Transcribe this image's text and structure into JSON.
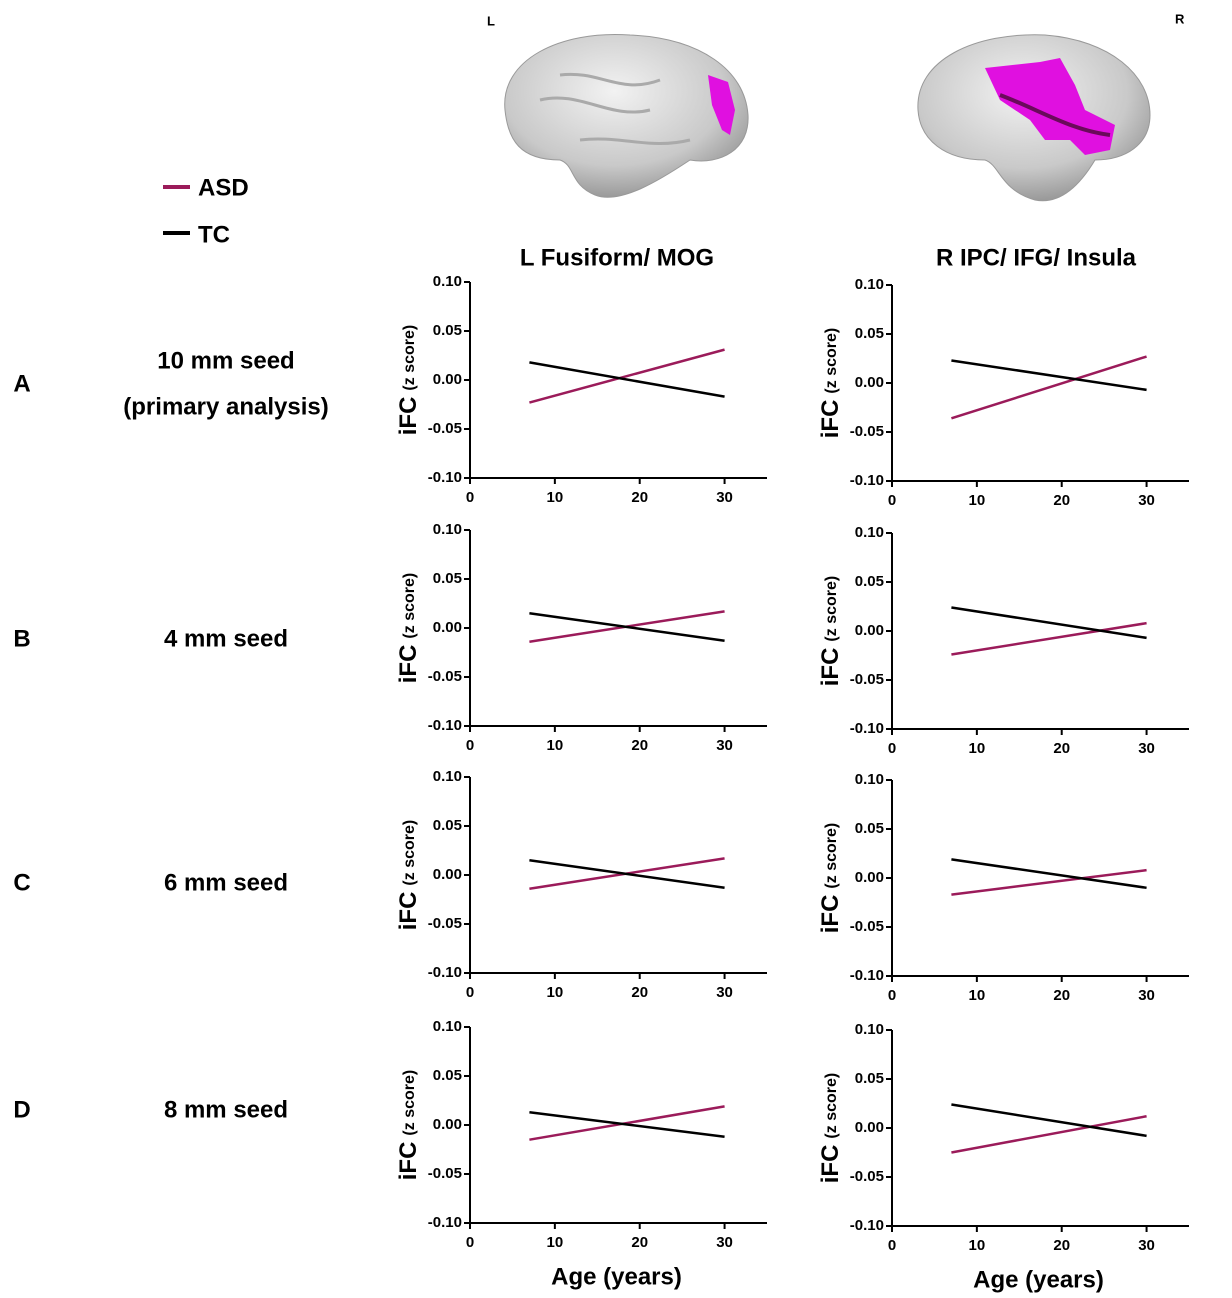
{
  "brain_labels": [
    "L",
    "R"
  ],
  "columns": [
    "L Fusiform/ MOG",
    "R IPC/ IFG/ Insula"
  ],
  "rows": [
    {
      "letter": "A",
      "label": [
        "10 mm seed",
        "(primary analysis)"
      ]
    },
    {
      "letter": "B",
      "label": [
        "4 mm seed"
      ]
    },
    {
      "letter": "C",
      "label": [
        "6 mm seed"
      ]
    },
    {
      "letter": "D",
      "label": [
        "8 mm seed"
      ]
    }
  ],
  "chart_data": [
    {
      "type": "line",
      "y_label": "iFC",
      "y_sublabel": "(z score)",
      "x": [
        7,
        30
      ],
      "series": [
        {
          "name": "ASD",
          "color": "#9b1b5a",
          "values": [
            -0.023,
            0.031
          ]
        },
        {
          "name": "TC",
          "color": "#000000",
          "values": [
            0.018,
            -0.017
          ]
        }
      ],
      "xlim": [
        0,
        35
      ],
      "xticks": [
        0,
        10,
        20,
        30
      ],
      "ylim": [
        -0.1,
        0.1
      ],
      "yticks": [
        {
          "value": -0.1,
          "label": "-0.10"
        },
        {
          "value": -0.05,
          "label": "-0.05"
        },
        {
          "value": 0,
          "label": "0.00"
        },
        {
          "value": 0.05,
          "label": "0.05"
        },
        {
          "value": 0.1,
          "label": "0.10"
        }
      ]
    },
    {
      "type": "line",
      "y_label": "iFC",
      "y_sublabel": "(z score)",
      "x": [
        7,
        30
      ],
      "series": [
        {
          "name": "ASD",
          "color": "#9b1b5a",
          "values": [
            -0.036,
            0.027
          ]
        },
        {
          "name": "TC",
          "color": "#000000",
          "values": [
            0.023,
            -0.007
          ]
        }
      ],
      "xlim": [
        0,
        35
      ],
      "xticks": [
        0,
        10,
        20,
        30
      ],
      "ylim": [
        -0.1,
        0.1
      ],
      "yticks": [
        {
          "value": -0.1,
          "label": "-0.10"
        },
        {
          "value": -0.05,
          "label": "-0.05"
        },
        {
          "value": 0,
          "label": "0.00"
        },
        {
          "value": 0.05,
          "label": "0.05"
        },
        {
          "value": 0.1,
          "label": "0.10"
        }
      ]
    },
    {
      "type": "line",
      "y_label": "iFC",
      "y_sublabel": "(z score)",
      "x": [
        7,
        30
      ],
      "series": [
        {
          "name": "ASD",
          "color": "#9b1b5a",
          "values": [
            -0.014,
            0.017
          ]
        },
        {
          "name": "TC",
          "color": "#000000",
          "values": [
            0.015,
            -0.013
          ]
        }
      ],
      "xlim": [
        0,
        35
      ],
      "xticks": [
        0,
        10,
        20,
        30
      ],
      "ylim": [
        -0.1,
        0.1
      ],
      "yticks": [
        {
          "value": -0.1,
          "label": "-0.10"
        },
        {
          "value": -0.05,
          "label": "-0.05"
        },
        {
          "value": 0,
          "label": "0.00"
        },
        {
          "value": 0.05,
          "label": "0.05"
        },
        {
          "value": 0.1,
          "label": "0.10"
        }
      ]
    },
    {
      "type": "line",
      "y_label": "iFC",
      "y_sublabel": "(z score)",
      "x": [
        7,
        30
      ],
      "series": [
        {
          "name": "ASD",
          "color": "#9b1b5a",
          "values": [
            -0.024,
            0.008
          ]
        },
        {
          "name": "TC",
          "color": "#000000",
          "values": [
            0.024,
            -0.007
          ]
        }
      ],
      "xlim": [
        0,
        35
      ],
      "xticks": [
        0,
        10,
        20,
        30
      ],
      "ylim": [
        -0.1,
        0.1
      ],
      "yticks": [
        {
          "value": -0.1,
          "label": "-0.10"
        },
        {
          "value": -0.05,
          "label": "-0.05"
        },
        {
          "value": 0,
          "label": "0.00"
        },
        {
          "value": 0.05,
          "label": "0.05"
        },
        {
          "value": 0.1,
          "label": "0.10"
        }
      ]
    },
    {
      "type": "line",
      "y_label": "iFC",
      "y_sublabel": "(z score)",
      "x": [
        7,
        30
      ],
      "series": [
        {
          "name": "ASD",
          "color": "#9b1b5a",
          "values": [
            -0.014,
            0.017
          ]
        },
        {
          "name": "TC",
          "color": "#000000",
          "values": [
            0.015,
            -0.013
          ]
        }
      ],
      "xlim": [
        0,
        35
      ],
      "xticks": [
        0,
        10,
        20,
        30
      ],
      "ylim": [
        -0.1,
        0.1
      ],
      "yticks": [
        {
          "value": -0.1,
          "label": "-0.10"
        },
        {
          "value": -0.05,
          "label": "-0.05"
        },
        {
          "value": 0,
          "label": "0.00"
        },
        {
          "value": 0.05,
          "label": "0.05"
        },
        {
          "value": 0.1,
          "label": "0.10"
        }
      ]
    },
    {
      "type": "line",
      "y_label": "iFC",
      "y_sublabel": "(z score)",
      "x": [
        7,
        30
      ],
      "series": [
        {
          "name": "ASD",
          "color": "#9b1b5a",
          "values": [
            -0.017,
            0.008
          ]
        },
        {
          "name": "TC",
          "color": "#000000",
          "values": [
            0.019,
            -0.01
          ]
        }
      ],
      "xlim": [
        0,
        35
      ],
      "xticks": [
        0,
        10,
        20,
        30
      ],
      "ylim": [
        -0.1,
        0.1
      ],
      "yticks": [
        {
          "value": -0.1,
          "label": "-0.10"
        },
        {
          "value": -0.05,
          "label": "-0.05"
        },
        {
          "value": 0,
          "label": "0.00"
        },
        {
          "value": 0.05,
          "label": "0.05"
        },
        {
          "value": 0.1,
          "label": "0.10"
        }
      ]
    },
    {
      "type": "line",
      "y_label": "iFC",
      "y_sublabel": "(z score)",
      "x_label": "Age (years)",
      "x": [
        7,
        30
      ],
      "series": [
        {
          "name": "ASD",
          "color": "#9b1b5a",
          "values": [
            -0.015,
            0.019
          ]
        },
        {
          "name": "TC",
          "color": "#000000",
          "values": [
            0.013,
            -0.012
          ]
        }
      ],
      "xlim": [
        0,
        35
      ],
      "xticks": [
        0,
        10,
        20,
        30
      ],
      "ylim": [
        -0.1,
        0.1
      ],
      "yticks": [
        {
          "value": -0.1,
          "label": "-0.10"
        },
        {
          "value": -0.05,
          "label": "-0.05"
        },
        {
          "value": 0,
          "label": "0.00"
        },
        {
          "value": 0.05,
          "label": "0.05"
        },
        {
          "value": 0.1,
          "label": "0.10"
        }
      ]
    },
    {
      "type": "line",
      "y_label": "iFC",
      "y_sublabel": "(z score)",
      "x_label": "Age (years)",
      "x": [
        7,
        30
      ],
      "series": [
        {
          "name": "ASD",
          "color": "#9b1b5a",
          "values": [
            -0.025,
            0.012
          ]
        },
        {
          "name": "TC",
          "color": "#000000",
          "values": [
            0.024,
            -0.008
          ]
        }
      ],
      "xlim": [
        0,
        35
      ],
      "xticks": [
        0,
        10,
        20,
        30
      ],
      "ylim": [
        -0.1,
        0.1
      ],
      "yticks": [
        {
          "value": -0.1,
          "label": "-0.10"
        },
        {
          "value": -0.05,
          "label": "-0.05"
        },
        {
          "value": 0,
          "label": "0.00"
        },
        {
          "value": 0.05,
          "label": "0.05"
        },
        {
          "value": 0.1,
          "label": "0.10"
        }
      ]
    }
  ]
}
